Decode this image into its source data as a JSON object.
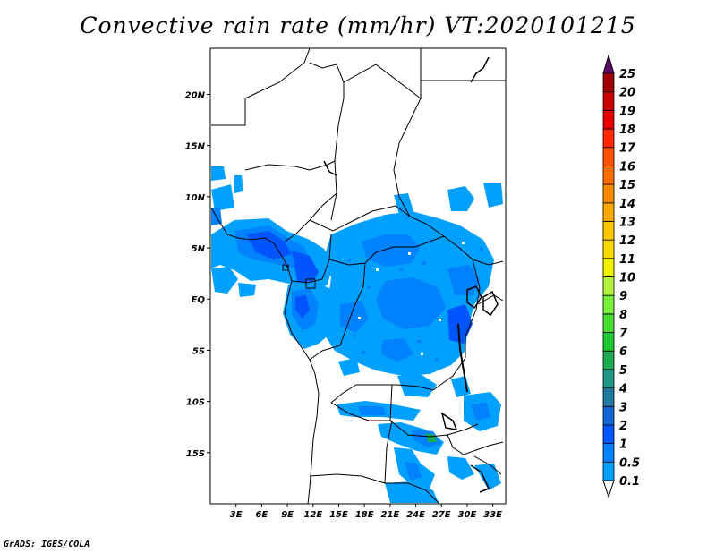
{
  "title": "Convective rain rate (mm/hr) VT:2020101215",
  "credit": "GrADS: IGES/COLA",
  "map": {
    "lon_range": [
      0,
      34.5
    ],
    "lat_range": [
      -20,
      24.5
    ],
    "x_ticks": [
      {
        "value": 3,
        "label": "3E"
      },
      {
        "value": 6,
        "label": "6E"
      },
      {
        "value": 9,
        "label": "9E"
      },
      {
        "value": 12,
        "label": "12E"
      },
      {
        "value": 15,
        "label": "15E"
      },
      {
        "value": 18,
        "label": "18E"
      },
      {
        "value": 21,
        "label": "21E"
      },
      {
        "value": 24,
        "label": "24E"
      },
      {
        "value": 27,
        "label": "27E"
      },
      {
        "value": 30,
        "label": "30E"
      },
      {
        "value": 33,
        "label": "33E"
      }
    ],
    "y_ticks": [
      {
        "value": 20,
        "label": "20N"
      },
      {
        "value": 15,
        "label": "15N"
      },
      {
        "value": 10,
        "label": "10N"
      },
      {
        "value": 5,
        "label": "5N"
      },
      {
        "value": 0,
        "label": "EQ"
      },
      {
        "value": -5,
        "label": "5S"
      },
      {
        "value": -10,
        "label": "10S"
      },
      {
        "value": -15,
        "label": "15S"
      }
    ]
  },
  "colorbar": {
    "levels": [
      {
        "label": "0.1",
        "color": "#00a0ff"
      },
      {
        "label": "0.5",
        "color": "#0082ff"
      },
      {
        "label": "1",
        "color": "#0055ff"
      },
      {
        "label": "2",
        "color": "#1464d2"
      },
      {
        "label": "3",
        "color": "#1e78a0"
      },
      {
        "label": "4",
        "color": "#1e9682"
      },
      {
        "label": "5",
        "color": "#1eaa50"
      },
      {
        "label": "6",
        "color": "#1ec832"
      },
      {
        "label": "7",
        "color": "#46dc32"
      },
      {
        "label": "8",
        "color": "#78f03c"
      },
      {
        "label": "9",
        "color": "#b4f03c"
      },
      {
        "label": "10",
        "color": "#f0f000"
      },
      {
        "label": "11",
        "color": "#fadc00"
      },
      {
        "label": "12",
        "color": "#ffc800"
      },
      {
        "label": "13",
        "color": "#ffaa00"
      },
      {
        "label": "14",
        "color": "#ff8c00"
      },
      {
        "label": "15",
        "color": "#ff6e00"
      },
      {
        "label": "16",
        "color": "#ff5000"
      },
      {
        "label": "17",
        "color": "#ff2800"
      },
      {
        "label": "18",
        "color": "#e60000"
      },
      {
        "label": "19",
        "color": "#c80000"
      },
      {
        "label": "20",
        "color": "#a00000"
      },
      {
        "label": "25",
        "color": "#780000"
      }
    ],
    "top_arrow_color": "#5a0a64"
  }
}
